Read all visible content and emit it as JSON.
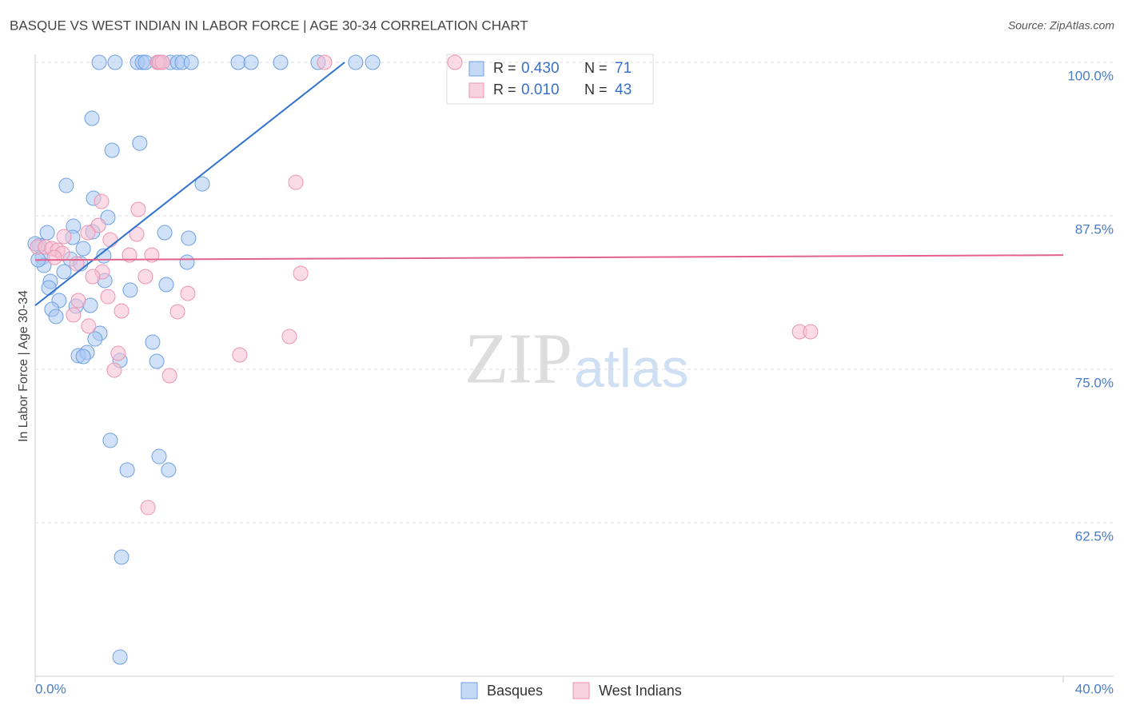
{
  "chart_data": {
    "type": "scatter",
    "title": "BASQUE VS WEST INDIAN IN LABOR FORCE | AGE 30-34 CORRELATION CHART",
    "source": "Source: ZipAtlas.com",
    "y_label": "In Labor Force | Age 30-34",
    "watermark": {
      "bold": "ZIP",
      "light": "atlas"
    },
    "xlim": [
      0,
      40
    ],
    "ylim": [
      50,
      101
    ],
    "xticks": [
      {
        "value": 0,
        "label": "0.0%"
      },
      {
        "value": 40,
        "label": "40.0%"
      }
    ],
    "yticks": [
      {
        "value": 100,
        "label": "100.0%"
      },
      {
        "value": 87.5,
        "label": "87.5%"
      },
      {
        "value": 75,
        "label": "75.0%"
      },
      {
        "value": 62.5,
        "label": "62.5%"
      }
    ],
    "grid": true,
    "stat_labels": {
      "r": "R =",
      "n": "N ="
    },
    "series": [
      {
        "name": "Basques",
        "color": "#6fa0e0",
        "fill": "#a9c9f2",
        "trend_color": "#2f72cf",
        "r": "0.430",
        "n": "71",
        "trend": {
          "x": [
            0,
            12.04
          ],
          "y": [
            80.2,
            100
          ]
        },
        "x": [
          2.49,
          3.11,
          3.98,
          4.17,
          4.29,
          4.79,
          5.26,
          5.54,
          5.72,
          6.07,
          7.9,
          8.4,
          9.55,
          11.01,
          12.47,
          13.13,
          2.21,
          2.99,
          4.07,
          1.21,
          2.27,
          6.5,
          2.83,
          0.47,
          1.49,
          2.24,
          5.04,
          5.97,
          1.46,
          1.87,
          0.16,
          0.28,
          0.34,
          1.37,
          1.77,
          2.67,
          5.91,
          1.12,
          0.59,
          0.53,
          2.71,
          3.7,
          5.1,
          0.93,
          1.59,
          2.15,
          0.65,
          0.81,
          2.52,
          2.33,
          4.57,
          1.68,
          2.02,
          1.87,
          3.3,
          4.73,
          2.92,
          3.58,
          4.82,
          5.19,
          3.36,
          3.3,
          0,
          0.12
        ],
        "values": [
          100,
          100,
          100,
          100,
          100,
          100,
          100,
          100,
          100,
          100,
          100,
          100,
          100,
          100,
          100,
          100,
          95.44,
          92.84,
          93.42,
          89.97,
          88.93,
          90.1,
          87.37,
          86.13,
          86.65,
          86.2,
          86.13,
          85.68,
          85.74,
          84.83,
          85.09,
          84.11,
          83.46,
          83.98,
          83.59,
          84.24,
          83.72,
          82.94,
          82.16,
          81.64,
          82.23,
          81.45,
          81.9,
          80.6,
          80.14,
          80.21,
          79.88,
          79.3,
          77.93,
          77.47,
          77.21,
          76.11,
          76.37,
          76.04,
          75.72,
          75.65,
          69.21,
          66.8,
          67.9,
          66.8,
          59.7,
          51.56,
          85.22,
          83.92
        ]
      },
      {
        "name": "West Indians",
        "color": "#eb93b2",
        "fill": "#f7bfd1",
        "trend_color": "#e2628e",
        "r": "0.010",
        "n": "43",
        "trend": {
          "x": [
            0,
            40
          ],
          "y": [
            83.9,
            84.3
          ]
        },
        "x": [
          16.33,
          11.26,
          4.76,
          4.85,
          4.95,
          10.14,
          2.58,
          4.01,
          2.46,
          2.05,
          3.95,
          2.92,
          1.12,
          0.09,
          0.4,
          0.65,
          0.87,
          1.06,
          3.67,
          4.54,
          0.75,
          2.61,
          2.24,
          4.29,
          10.33,
          2.83,
          5.94,
          1.68,
          3.36,
          5.54,
          1.49,
          2.08,
          9.89,
          3.23,
          7.96,
          3.08,
          5.23,
          29.74,
          30.17,
          4.39,
          1.62
        ],
        "values": [
          100,
          100,
          100,
          100,
          100,
          90.23,
          88.67,
          88.02,
          86.72,
          86.13,
          86.0,
          85.55,
          85.81,
          84.96,
          84.96,
          84.83,
          84.7,
          84.44,
          84.31,
          84.31,
          84.11,
          82.94,
          82.55,
          82.55,
          82.81,
          80.92,
          81.18,
          80.6,
          79.75,
          79.69,
          79.43,
          78.52,
          77.67,
          76.3,
          76.17,
          74.93,
          74.48,
          78.06,
          78.06,
          63.74,
          83.59
        ]
      }
    ]
  }
}
